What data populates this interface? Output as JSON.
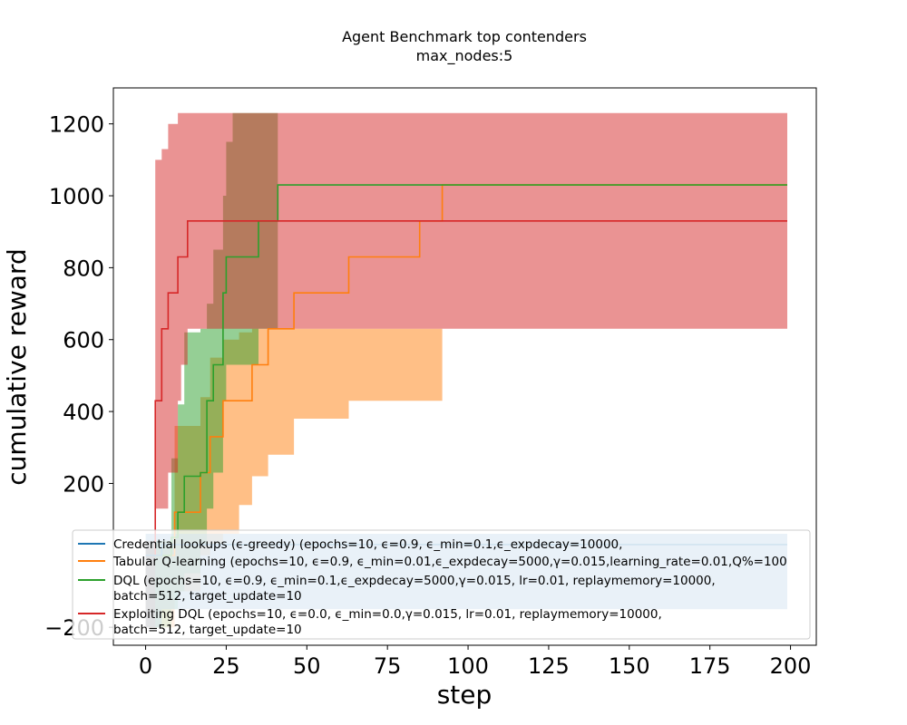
{
  "chart_data": {
    "type": "line",
    "title": "Agent Benchmark top contenders",
    "subtitle": "max_nodes:5",
    "xlabel": "step",
    "ylabel": "cumulative reward",
    "xlim": [
      -10,
      208
    ],
    "ylim": [
      -250,
      1300
    ],
    "x_ticks": [
      0,
      25,
      50,
      75,
      100,
      125,
      150,
      175,
      200
    ],
    "y_ticks": [
      -200,
      200,
      400,
      600,
      800,
      1000,
      1200
    ],
    "y_tick_labels": [
      "−200",
      "200",
      "400",
      "600",
      "800",
      "1000",
      "1200"
    ],
    "grid": false,
    "legend_position": "lower-left",
    "series": [
      {
        "name": "Credential lookups (ϵ-greedy) (epochs=10, ϵ=0.9, ϵ_min=0.1,ϵ_expdecay=10000,",
        "color": "#1f77b4",
        "x": [
          0,
          5,
          199
        ],
        "y": [
          0,
          30,
          30
        ],
        "band_lower": [
          -200,
          -150,
          -150
        ],
        "band_upper": [
          60,
          60,
          60
        ]
      },
      {
        "name": "Tabular Q-learning (epochs=10, ϵ=0.9, ϵ_min=0.01,ϵ_expdecay=5000,γ=0.015,learning_rate=0.01,Q%=100",
        "color": "#ff7f0e",
        "x": [
          0,
          9,
          17,
          20,
          24,
          29,
          33,
          38,
          46,
          63,
          85,
          92,
          199
        ],
        "y": [
          0,
          120,
          230,
          330,
          430,
          430,
          530,
          630,
          730,
          830,
          930,
          1030,
          1030
        ],
        "band_lower": [
          -200,
          -100,
          0,
          30,
          60,
          140,
          220,
          280,
          380,
          430,
          430,
          1030,
          1030
        ],
        "band_upper": [
          40,
          360,
          440,
          550,
          600,
          620,
          630,
          630,
          630,
          630,
          630,
          1030,
          1030
        ]
      },
      {
        "name": "DQL (epochs=10, ϵ=0.9, ϵ_min=0.1,ϵ_expdecay=5000,γ=0.015, lr=0.01, replaymemory=10000,",
        "name_line2": "batch=512, target_update=10",
        "color": "#2ca02c",
        "x": [
          0,
          8,
          10,
          12,
          17,
          19,
          21,
          24,
          25,
          27,
          35,
          37,
          41,
          199
        ],
        "y": [
          0,
          50,
          120,
          220,
          230,
          430,
          530,
          730,
          830,
          830,
          930,
          930,
          1030,
          1030
        ],
        "band_lower": [
          -200,
          -150,
          -100,
          -50,
          30,
          130,
          230,
          430,
          530,
          530,
          630,
          630,
          1030,
          1030
        ],
        "band_upper": [
          40,
          270,
          420,
          620,
          630,
          700,
          850,
          1000,
          1150,
          1230,
          1230,
          1230,
          1030,
          1030
        ]
      },
      {
        "name": "Exploiting DQL (epochs=10, ϵ=0.0, ϵ_min=0.0,γ=0.015, lr=0.01, replaymemory=10000,",
        "name_line2": "batch=512, target_update=10",
        "color": "#d62728",
        "x": [
          0,
          3,
          5,
          7,
          10,
          11,
          13,
          199
        ],
        "y": [
          0,
          430,
          630,
          730,
          830,
          830,
          930,
          930
        ],
        "band_lower": [
          -200,
          130,
          130,
          230,
          430,
          530,
          630,
          630
        ],
        "band_upper": [
          40,
          1100,
          1130,
          1200,
          1230,
          1230,
          1230,
          1230
        ]
      }
    ]
  }
}
